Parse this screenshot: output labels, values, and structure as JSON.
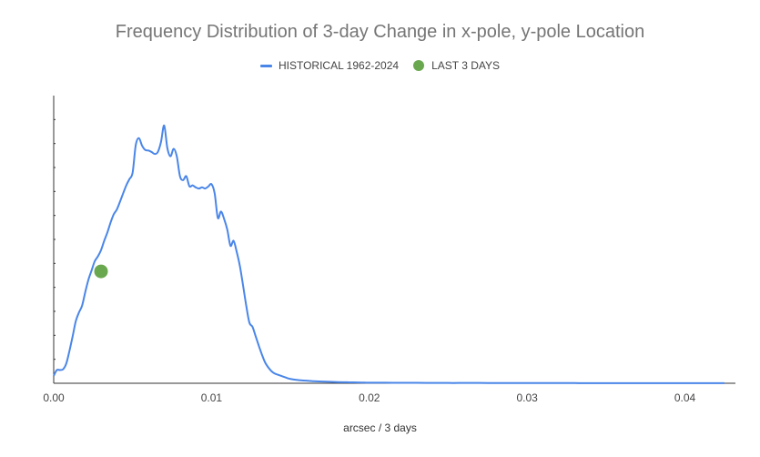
{
  "chart_data": {
    "type": "line",
    "title": "Frequency Distribution of 3-day Change in x-pole, y-pole Location",
    "xlabel": "arcsec / 3 days",
    "ylabel": "",
    "xlim": [
      0,
      0.0432
    ],
    "ylim": [
      0,
      100
    ],
    "x_ticks": [
      "0.00",
      "0.01",
      "0.02",
      "0.03",
      "0.04"
    ],
    "grid": false,
    "legend_position": "top",
    "series": [
      {
        "name": "HISTORICAL 1962-2024",
        "type": "line",
        "color": "#4a86e8",
        "points": [
          [
            0.0,
            2.6
          ],
          [
            0.0002,
            4.6
          ],
          [
            0.0004,
            4.6
          ],
          [
            0.0006,
            4.9
          ],
          [
            0.0008,
            6.9
          ],
          [
            0.001,
            11.3
          ],
          [
            0.0012,
            16.3
          ],
          [
            0.0014,
            21.6
          ],
          [
            0.0016,
            24.6
          ],
          [
            0.0018,
            27.0
          ],
          [
            0.002,
            31.7
          ],
          [
            0.0022,
            36.0
          ],
          [
            0.0024,
            39.2
          ],
          [
            0.0026,
            42.4
          ],
          [
            0.0028,
            44.1
          ],
          [
            0.003,
            46.3
          ],
          [
            0.0032,
            49.5
          ],
          [
            0.0034,
            52.4
          ],
          [
            0.0036,
            55.8
          ],
          [
            0.0038,
            58.7
          ],
          [
            0.004,
            60.4
          ],
          [
            0.0042,
            63.1
          ],
          [
            0.0044,
            66.0
          ],
          [
            0.0046,
            68.8
          ],
          [
            0.0048,
            71.0
          ],
          [
            0.005,
            73.2
          ],
          [
            0.0052,
            82.8
          ],
          [
            0.0054,
            85.2
          ],
          [
            0.0056,
            82.6
          ],
          [
            0.0058,
            81.1
          ],
          [
            0.006,
            80.9
          ],
          [
            0.0062,
            80.4
          ],
          [
            0.0064,
            79.7
          ],
          [
            0.0066,
            80.4
          ],
          [
            0.0068,
            83.9
          ],
          [
            0.007,
            89.6
          ],
          [
            0.0072,
            81.8
          ],
          [
            0.0074,
            78.9
          ],
          [
            0.0076,
            81.5
          ],
          [
            0.0078,
            78.9
          ],
          [
            0.008,
            72.0
          ],
          [
            0.0082,
            70.6
          ],
          [
            0.0084,
            72.0
          ],
          [
            0.0086,
            68.5
          ],
          [
            0.0088,
            68.8
          ],
          [
            0.009,
            68.1
          ],
          [
            0.0092,
            67.7
          ],
          [
            0.0094,
            68.1
          ],
          [
            0.0096,
            67.7
          ],
          [
            0.0098,
            68.4
          ],
          [
            0.01,
            69.2
          ],
          [
            0.0102,
            66.0
          ],
          [
            0.0104,
            57.5
          ],
          [
            0.0106,
            59.7
          ],
          [
            0.0108,
            57.1
          ],
          [
            0.011,
            53.4
          ],
          [
            0.0112,
            47.8
          ],
          [
            0.0114,
            49.5
          ],
          [
            0.0116,
            45.6
          ],
          [
            0.0118,
            40.7
          ],
          [
            0.012,
            34.0
          ],
          [
            0.0122,
            27.0
          ],
          [
            0.0124,
            21.1
          ],
          [
            0.0126,
            19.6
          ],
          [
            0.0128,
            16.3
          ],
          [
            0.013,
            13.0
          ],
          [
            0.0132,
            9.9
          ],
          [
            0.0134,
            7.2
          ],
          [
            0.0136,
            5.5
          ],
          [
            0.0138,
            4.2
          ],
          [
            0.014,
            3.4
          ],
          [
            0.0142,
            3.0
          ],
          [
            0.0144,
            2.6
          ],
          [
            0.0146,
            2.2
          ],
          [
            0.0148,
            1.8
          ],
          [
            0.015,
            1.5
          ],
          [
            0.0155,
            1.1
          ],
          [
            0.016,
            0.9
          ],
          [
            0.0165,
            0.7
          ],
          [
            0.017,
            0.6
          ],
          [
            0.0175,
            0.5
          ],
          [
            0.018,
            0.4
          ],
          [
            0.0185,
            0.35
          ],
          [
            0.019,
            0.3
          ],
          [
            0.0195,
            0.25
          ],
          [
            0.02,
            0.2
          ],
          [
            0.021,
            0.2
          ],
          [
            0.022,
            0.15
          ],
          [
            0.023,
            0.15
          ],
          [
            0.024,
            0.12
          ],
          [
            0.025,
            0.1
          ],
          [
            0.026,
            0.1
          ],
          [
            0.027,
            0.1
          ],
          [
            0.028,
            0.08
          ],
          [
            0.029,
            0.08
          ],
          [
            0.03,
            0.07
          ],
          [
            0.031,
            0.07
          ],
          [
            0.032,
            0.06
          ],
          [
            0.033,
            0.06
          ],
          [
            0.034,
            0.05
          ],
          [
            0.035,
            0.05
          ],
          [
            0.036,
            0.05
          ],
          [
            0.037,
            0.04
          ],
          [
            0.038,
            0.04
          ],
          [
            0.039,
            0.04
          ],
          [
            0.04,
            0.03
          ],
          [
            0.041,
            0.03
          ],
          [
            0.042,
            0.03
          ],
          [
            0.0425,
            0.03
          ]
        ]
      },
      {
        "name": "LAST 3 DAYS",
        "type": "scatter",
        "color": "#6aa84f",
        "points": [
          [
            0.003,
            38.9
          ]
        ]
      }
    ]
  }
}
